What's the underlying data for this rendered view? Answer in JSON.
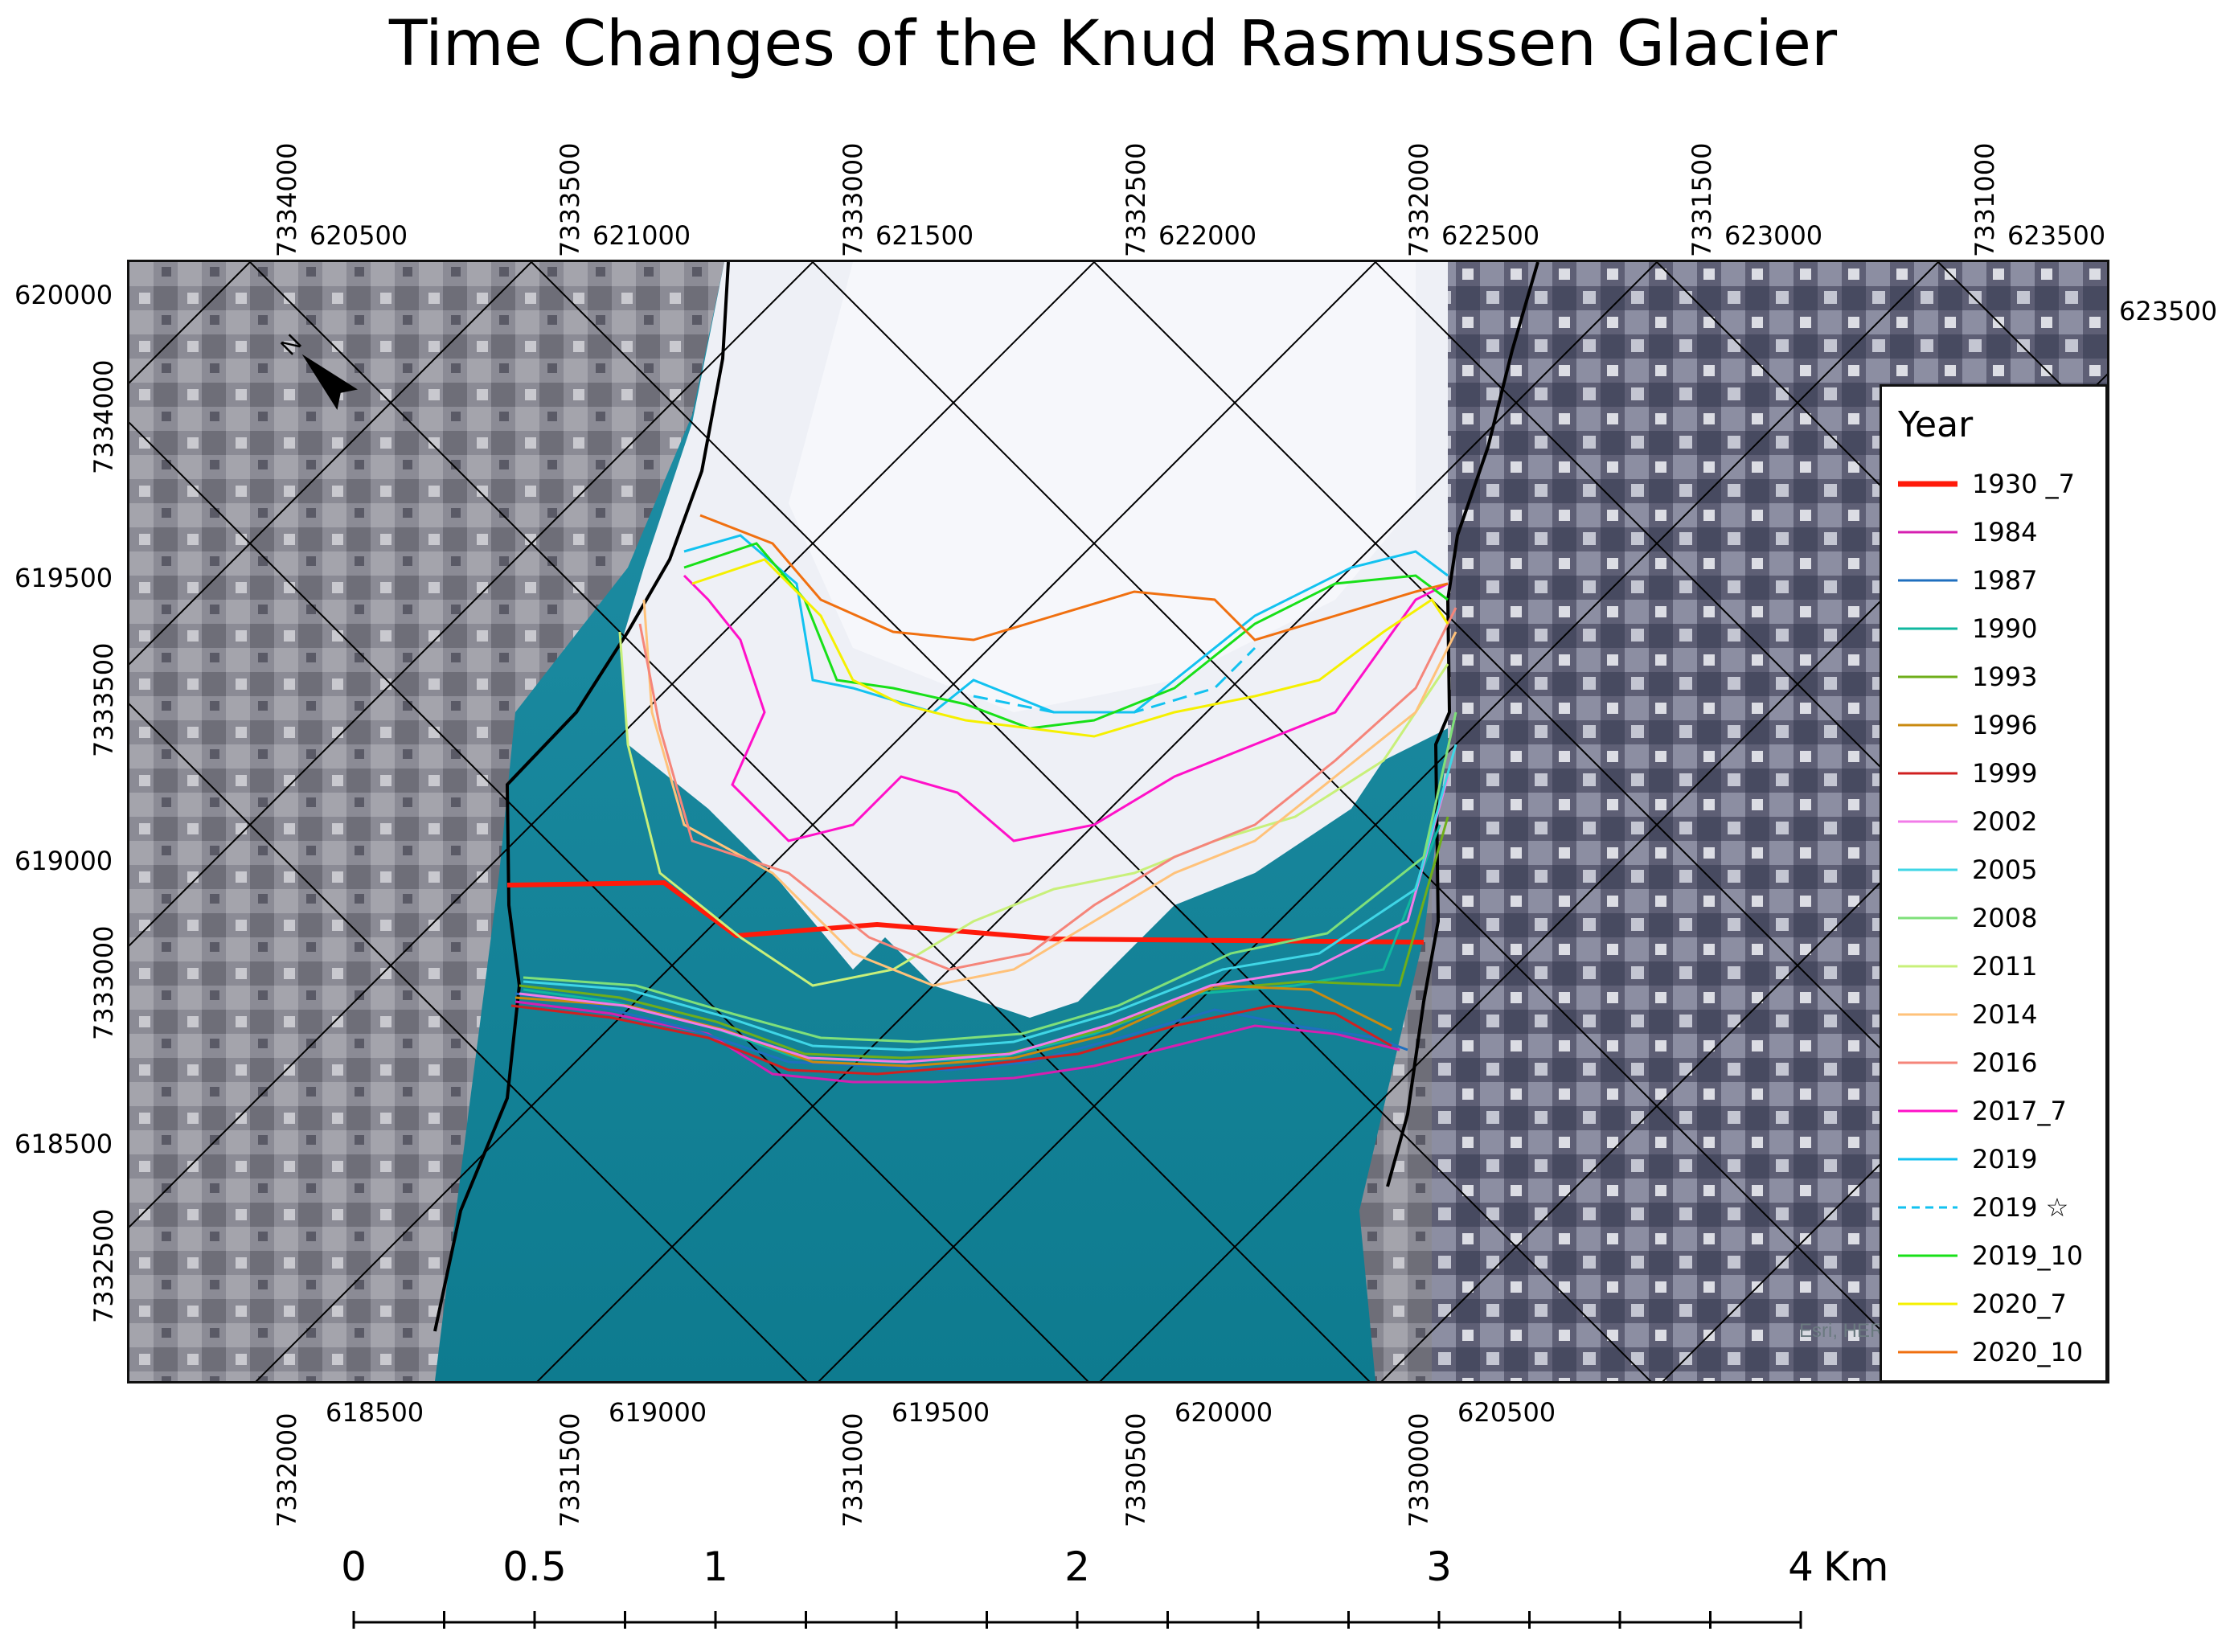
{
  "title": "Time Changes of the Knud Rasmussen Glacier",
  "top_coord_labels": {
    "rotated": [
      "7334000",
      "7333500",
      "7333000",
      "7332500",
      "7332000",
      "7331500",
      "7331000"
    ],
    "horizontal": [
      "620500",
      "621000",
      "621500",
      "622000",
      "622500",
      "623000",
      "623500"
    ]
  },
  "right_coord_label": "623500",
  "left_coord_labels": {
    "horizontal": [
      "620000",
      "619500",
      "619000",
      "618500"
    ],
    "rotated": [
      "7334000",
      "7333500",
      "7333000",
      "7332500"
    ]
  },
  "bottom_coord_labels": {
    "rotated": [
      "7332000",
      "7331500",
      "7331000",
      "7330500",
      "7330000"
    ],
    "horizontal": [
      "618500",
      "619000",
      "619500",
      "620000",
      "620500"
    ]
  },
  "north_arrow": {
    "label": "N",
    "icon": "north-arrow-icon"
  },
  "legend": {
    "title": "Year",
    "items": [
      {
        "label": "1930 _7",
        "color": "#ff1a0a",
        "style": "thick"
      },
      {
        "label": "1984",
        "color": "#d61fb0",
        "style": "solid"
      },
      {
        "label": "1987",
        "color": "#1f6fbf",
        "style": "solid"
      },
      {
        "label": "1990",
        "color": "#10b8a0",
        "style": "solid"
      },
      {
        "label": "1993",
        "color": "#6fae1a",
        "style": "solid"
      },
      {
        "label": "1996",
        "color": "#c98a10",
        "style": "solid"
      },
      {
        "label": "1999",
        "color": "#d02020",
        "style": "solid"
      },
      {
        "label": "2002",
        "color": "#f27be8",
        "style": "solid"
      },
      {
        "label": "2005",
        "color": "#3fd6e6",
        "style": "solid"
      },
      {
        "label": "2008",
        "color": "#7fe07a",
        "style": "solid"
      },
      {
        "label": "2011",
        "color": "#c8f07a",
        "style": "solid"
      },
      {
        "label": "2014",
        "color": "#ffc27a",
        "style": "solid"
      },
      {
        "label": "2016",
        "color": "#f5857a",
        "style": "solid"
      },
      {
        "label": "2017_7",
        "color": "#ff10c8",
        "style": "solid"
      },
      {
        "label": "2019",
        "color": "#12c2f0",
        "style": "solid"
      },
      {
        "label": "2019 ☆",
        "color": "#12c2f0",
        "style": "dashed"
      },
      {
        "label": "2019_10",
        "color": "#18e018",
        "style": "solid"
      },
      {
        "label": "2020_7",
        "color": "#f5f000",
        "style": "solid"
      },
      {
        "label": "2020_10",
        "color": "#f07010",
        "style": "solid"
      }
    ]
  },
  "attribution": "Esri, HERE",
  "scale_bar": {
    "labels": [
      "0",
      "0.5",
      "1",
      "2",
      "3",
      "4"
    ],
    "unit": "Km"
  }
}
